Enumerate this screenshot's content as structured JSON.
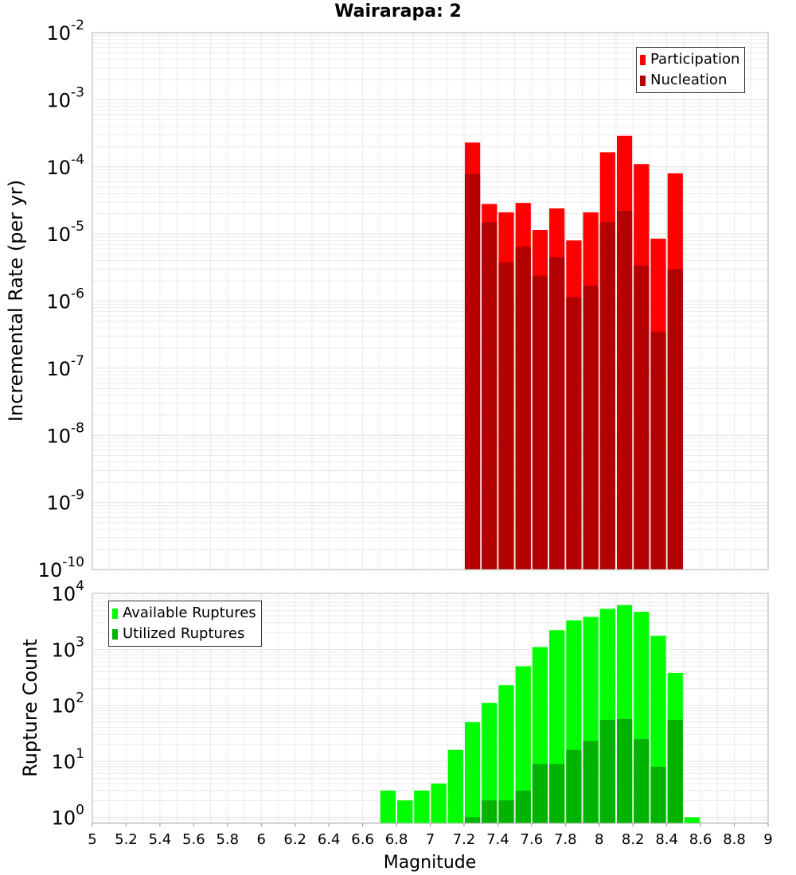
{
  "title": "Wairarapa: 2",
  "colors": {
    "participation": "#ff0000",
    "nucleation": "#b30000",
    "available": "#00ff00",
    "utilized": "#00b300",
    "grid": "#e2e2e2",
    "frame": "#b0b0b0"
  },
  "chart_data": [
    {
      "type": "bar",
      "yscale": "log",
      "ylabel": "Incremental Rate (per yr)",
      "ylim": [
        1e-10,
        0.01
      ],
      "y_tick_exponents": [
        "-10",
        "-9",
        "-8",
        "-7",
        "-6",
        "-5",
        "-4",
        "-3",
        "-2"
      ],
      "x": [
        7.25,
        7.35,
        7.45,
        7.55,
        7.65,
        7.75,
        7.85,
        7.95,
        8.05,
        8.15,
        8.25,
        8.35,
        8.45
      ],
      "series": [
        {
          "name": "Participation",
          "values": [
            0.00023,
            2.8e-05,
            2.1e-05,
            2.9e-05,
            1.15e-05,
            2.4e-05,
            8e-06,
            2.1e-05,
            0.000165,
            0.00029,
            0.00011,
            8.5e-06,
            8e-05
          ]
        },
        {
          "name": "Nucleation",
          "values": [
            7.8e-05,
            1.5e-05,
            3.8e-06,
            6.5e-06,
            2.4e-06,
            4.5e-06,
            1.15e-06,
            1.7e-06,
            1.5e-05,
            2.2e-05,
            3.4e-06,
            3.5e-07,
            3e-06
          ]
        }
      ],
      "legend": "top-right",
      "grid": true
    },
    {
      "type": "bar",
      "yscale": "log",
      "xlabel": "Magnitude",
      "ylabel": "Rupture Count",
      "ylim": [
        0.78,
        10000
      ],
      "xlim": [
        5,
        9
      ],
      "y_tick_exponents": [
        "0",
        "1",
        "2",
        "3",
        "4"
      ],
      "x_ticks": [
        "5",
        "5.2",
        "5.4",
        "5.6",
        "5.8",
        "6",
        "6.2",
        "6.4",
        "6.6",
        "6.8",
        "7",
        "7.2",
        "7.4",
        "7.6",
        "7.8",
        "8",
        "8.2",
        "8.4",
        "8.6",
        "8.8",
        "9"
      ],
      "x": [
        6.75,
        6.85,
        6.95,
        7.05,
        7.15,
        7.25,
        7.35,
        7.45,
        7.55,
        7.65,
        7.75,
        7.85,
        7.95,
        8.05,
        8.15,
        8.25,
        8.35,
        8.45,
        8.55
      ],
      "series": [
        {
          "name": "Available Ruptures",
          "values": [
            3,
            2,
            3,
            4,
            16,
            50,
            110,
            230,
            500,
            1100,
            2200,
            3300,
            3800,
            5300,
            6200,
            4700,
            1750,
            380,
            1
          ]
        },
        {
          "name": "Utilized Ruptures",
          "values": [
            null,
            null,
            null,
            null,
            null,
            1,
            2,
            2,
            3,
            9,
            9,
            16,
            23,
            55,
            57,
            25,
            8,
            55,
            null
          ]
        }
      ],
      "legend": "top-left",
      "grid": true
    }
  ]
}
